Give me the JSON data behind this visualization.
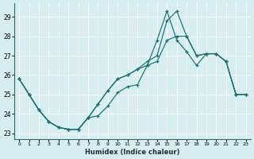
{
  "xlabel": "Humidex (Indice chaleur)",
  "background_color": "#d6eef0",
  "grid_color": "#ffffff",
  "line_color": "#1a7070",
  "xlim": [
    -0.5,
    23.5
  ],
  "ylim": [
    22.7,
    29.7
  ],
  "yticks": [
    23,
    24,
    25,
    26,
    27,
    28,
    29
  ],
  "xticks": [
    0,
    1,
    2,
    3,
    4,
    5,
    6,
    7,
    8,
    9,
    10,
    11,
    12,
    13,
    14,
    15,
    16,
    17,
    18,
    19,
    20,
    21,
    22,
    23
  ],
  "line1_x": [
    0,
    1,
    2,
    3,
    4,
    5,
    6,
    7,
    8,
    9,
    10,
    11,
    12,
    13,
    14,
    15,
    16,
    17,
    18,
    19,
    20,
    21,
    22,
    23
  ],
  "line1_y": [
    25.8,
    25.0,
    24.2,
    23.6,
    23.3,
    23.2,
    23.2,
    23.8,
    23.9,
    24.4,
    25.1,
    25.4,
    25.5,
    26.5,
    27.8,
    29.3,
    27.8,
    27.2,
    26.5,
    27.1,
    27.1,
    26.7,
    25.0,
    25.0
  ],
  "line2_x": [
    0,
    1,
    2,
    3,
    4,
    5,
    6,
    7,
    8,
    9,
    10,
    11,
    12,
    13,
    14,
    15,
    16,
    17,
    18,
    19,
    20,
    21,
    22,
    23
  ],
  "line2_y": [
    25.8,
    25.0,
    24.2,
    23.6,
    23.3,
    23.2,
    23.2,
    23.8,
    24.5,
    25.2,
    25.8,
    26.0,
    26.3,
    26.7,
    27.0,
    28.8,
    29.3,
    28.0,
    27.0,
    27.1,
    27.1,
    26.7,
    25.0,
    25.0
  ],
  "line3_x": [
    0,
    1,
    2,
    3,
    4,
    5,
    6,
    7,
    8,
    9,
    10,
    11,
    12,
    13,
    14,
    15,
    16,
    17,
    18,
    19,
    20,
    21,
    22,
    23
  ],
  "line3_y": [
    25.8,
    25.0,
    24.2,
    23.6,
    23.3,
    23.2,
    23.2,
    23.8,
    24.5,
    25.2,
    25.8,
    26.0,
    26.3,
    26.5,
    26.7,
    27.8,
    28.0,
    28.0,
    27.0,
    27.1,
    27.1,
    26.7,
    25.0,
    25.0
  ]
}
